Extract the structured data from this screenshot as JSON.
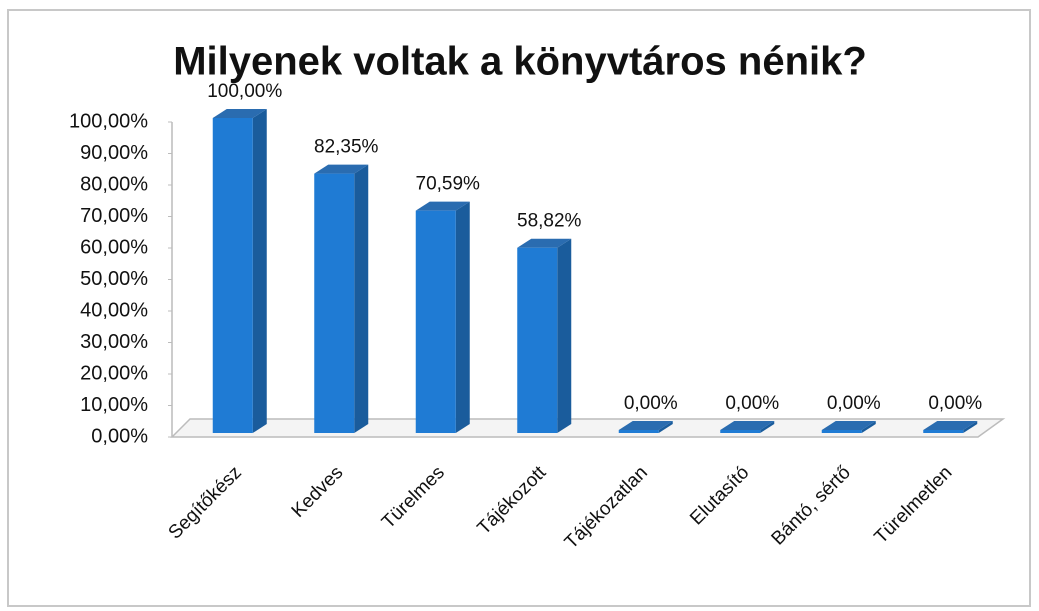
{
  "chart_data": {
    "type": "bar",
    "title": "Milyenek voltak a könyvtáros nénik?",
    "categories": [
      "Segítőkész",
      "Kedves",
      "Türelmes",
      "Tájékozott",
      "Tájékozatlan",
      "Elutasító",
      "Bántó, sértő",
      "Türelmetlen"
    ],
    "values": [
      100,
      82.35,
      70.59,
      58.82,
      0,
      0,
      0,
      0
    ],
    "value_labels": [
      "100,00%",
      "82,35%",
      "70,59%",
      "58,82%",
      "0,00%",
      "0,00%",
      "0,00%",
      "0,00%"
    ],
    "color": "#1f7bd4",
    "ylim": [
      0,
      100
    ],
    "yticks": [
      {
        "value": 0,
        "label": "0,00%"
      },
      {
        "value": 10,
        "label": "10,00%"
      },
      {
        "value": 20,
        "label": "20,00%"
      },
      {
        "value": 30,
        "label": "30,00%"
      },
      {
        "value": 40,
        "label": "40,00%"
      },
      {
        "value": 50,
        "label": "50,00%"
      },
      {
        "value": 60,
        "label": "60,00%"
      },
      {
        "value": 70,
        "label": "70,00%"
      },
      {
        "value": 80,
        "label": "80,00%"
      },
      {
        "value": 90,
        "label": "90,00%"
      },
      {
        "value": 100,
        "label": "100,00%"
      }
    ]
  }
}
